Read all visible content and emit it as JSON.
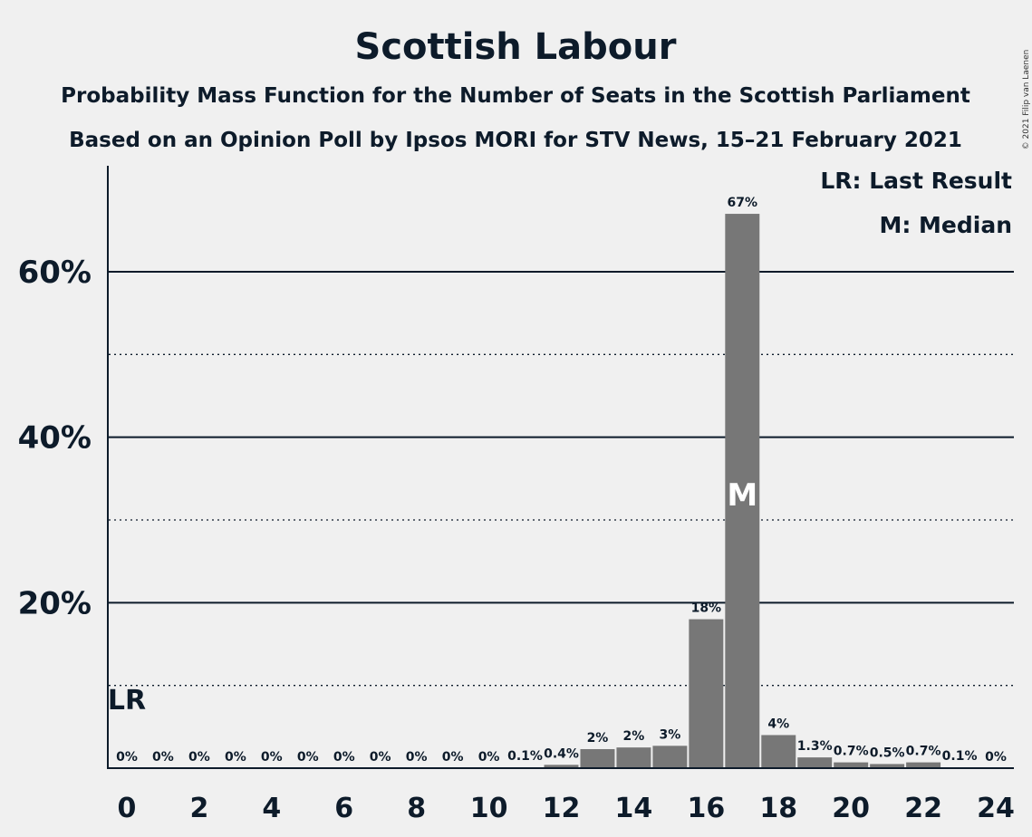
{
  "colors": {
    "background": "#f0f0f0",
    "bar": "#777777",
    "text": "#0d1b2a",
    "grid": "#0d1b2a"
  },
  "chart_data": {
    "type": "bar",
    "title": "Scottish Labour",
    "subtitle_1": "Probability Mass Function for the Number of Seats in the Scottish Parliament",
    "subtitle_2": "Based on an Opinion Poll by Ipsos MORI for STV News, 15–21 February 2021",
    "copyright": "© 2021 Filip van Laenen",
    "x": [
      0,
      1,
      2,
      3,
      4,
      5,
      6,
      7,
      8,
      9,
      10,
      11,
      12,
      13,
      14,
      15,
      16,
      17,
      18,
      19,
      20,
      21,
      22,
      23,
      24
    ],
    "values": [
      0,
      0,
      0,
      0,
      0,
      0,
      0,
      0,
      0,
      0,
      0,
      0.1,
      0.4,
      2.3,
      2.5,
      2.7,
      18,
      67,
      4,
      1.3,
      0.7,
      0.5,
      0.7,
      0.1,
      0
    ],
    "value_labels": [
      "0%",
      "0%",
      "0%",
      "0%",
      "0%",
      "0%",
      "0%",
      "0%",
      "0%",
      "0%",
      "0%",
      "0.1%",
      "0.4%",
      "2%",
      "2%",
      "3%",
      "18%",
      "67%",
      "4%",
      "1.3%",
      "0.7%",
      "0.5%",
      "0.7%",
      "0.1%",
      "0%"
    ],
    "x_ticks": [
      0,
      2,
      4,
      6,
      8,
      10,
      12,
      14,
      16,
      18,
      20,
      22,
      24
    ],
    "x_tick_labels": [
      "0",
      "2",
      "4",
      "6",
      "8",
      "10",
      "12",
      "14",
      "16",
      "18",
      "20",
      "22",
      "24"
    ],
    "y_ticks": [
      20,
      40,
      60
    ],
    "y_tick_labels": [
      "20%",
      "40%",
      "60%"
    ],
    "y_minor_ticks": [
      10,
      30,
      50
    ],
    "ylim": [
      0,
      72
    ],
    "xlim": [
      -0.5,
      24.5
    ],
    "grid": true,
    "legend": {
      "placement": "top-right",
      "entries": [
        "LR: Last Result",
        "M: Median"
      ]
    },
    "last_result": {
      "x": 0,
      "label": "LR"
    },
    "median": {
      "x": 17,
      "label": "M"
    }
  }
}
